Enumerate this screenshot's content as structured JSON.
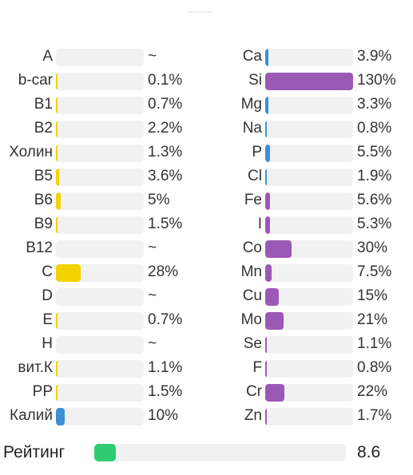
{
  "colors": {
    "vitamin": "#f2d200",
    "mineral_blue": "#3d8fd6",
    "mineral_purple": "#9b59b6",
    "rating": "#2ecc71",
    "track": "#f1f1f1"
  },
  "chart_data": {
    "type": "bar",
    "orientation": "horizontal",
    "columns": [
      {
        "group": "vitamins",
        "rows": [
          {
            "label": "A",
            "value_text": "~",
            "value": null,
            "color": "vitamin"
          },
          {
            "label": "b-car",
            "value_text": "0.1%",
            "value": 0.1,
            "color": "vitamin"
          },
          {
            "label": "B1",
            "value_text": "0.7%",
            "value": 0.7,
            "color": "vitamin"
          },
          {
            "label": "B2",
            "value_text": "2.2%",
            "value": 2.2,
            "color": "vitamin"
          },
          {
            "label": "Холин",
            "value_text": "1.3%",
            "value": 1.3,
            "color": "vitamin"
          },
          {
            "label": "B5",
            "value_text": "3.6%",
            "value": 3.6,
            "color": "vitamin"
          },
          {
            "label": "B6",
            "value_text": "5%",
            "value": 5,
            "color": "vitamin"
          },
          {
            "label": "B9",
            "value_text": "1.5%",
            "value": 1.5,
            "color": "vitamin"
          },
          {
            "label": "B12",
            "value_text": "~",
            "value": null,
            "color": "vitamin"
          },
          {
            "label": "C",
            "value_text": "28%",
            "value": 28,
            "color": "vitamin"
          },
          {
            "label": "D",
            "value_text": "~",
            "value": null,
            "color": "vitamin"
          },
          {
            "label": "E",
            "value_text": "0.7%",
            "value": 0.7,
            "color": "vitamin"
          },
          {
            "label": "H",
            "value_text": "~",
            "value": null,
            "color": "vitamin"
          },
          {
            "label": "вит.К",
            "value_text": "1.1%",
            "value": 1.1,
            "color": "vitamin"
          },
          {
            "label": "PP",
            "value_text": "1.5%",
            "value": 1.5,
            "color": "vitamin"
          },
          {
            "label": "Калий",
            "value_text": "10%",
            "value": 10,
            "color": "mineral_blue"
          }
        ]
      },
      {
        "group": "minerals",
        "rows": [
          {
            "label": "Ca",
            "value_text": "3.9%",
            "value": 3.9,
            "color": "mineral_blue"
          },
          {
            "label": "Si",
            "value_text": "130%",
            "value": 130,
            "color": "mineral_purple"
          },
          {
            "label": "Mg",
            "value_text": "3.3%",
            "value": 3.3,
            "color": "mineral_blue"
          },
          {
            "label": "Na",
            "value_text": "0.8%",
            "value": 0.8,
            "color": "mineral_blue"
          },
          {
            "label": "P",
            "value_text": "5.5%",
            "value": 5.5,
            "color": "mineral_blue"
          },
          {
            "label": "Cl",
            "value_text": "1.9%",
            "value": 1.9,
            "color": "mineral_blue"
          },
          {
            "label": "Fe",
            "value_text": "5.6%",
            "value": 5.6,
            "color": "mineral_purple"
          },
          {
            "label": "I",
            "value_text": "5.3%",
            "value": 5.3,
            "color": "mineral_purple"
          },
          {
            "label": "Co",
            "value_text": "30%",
            "value": 30,
            "color": "mineral_purple"
          },
          {
            "label": "Mn",
            "value_text": "7.5%",
            "value": 7.5,
            "color": "mineral_purple"
          },
          {
            "label": "Cu",
            "value_text": "15%",
            "value": 15,
            "color": "mineral_purple"
          },
          {
            "label": "Mo",
            "value_text": "21%",
            "value": 21,
            "color": "mineral_purple"
          },
          {
            "label": "Se",
            "value_text": "1.1%",
            "value": 1.1,
            "color": "mineral_purple"
          },
          {
            "label": "F",
            "value_text": "0.8%",
            "value": 0.8,
            "color": "mineral_purple"
          },
          {
            "label": "Cr",
            "value_text": "22%",
            "value": 22,
            "color": "mineral_purple"
          },
          {
            "label": "Zn",
            "value_text": "1.7%",
            "value": 1.7,
            "color": "mineral_purple"
          }
        ]
      }
    ],
    "xlim": [
      0,
      100
    ],
    "grid": false
  },
  "rating": {
    "label": "Рейтинг",
    "value_text": "8.6",
    "value": 8.6,
    "max": 100
  }
}
